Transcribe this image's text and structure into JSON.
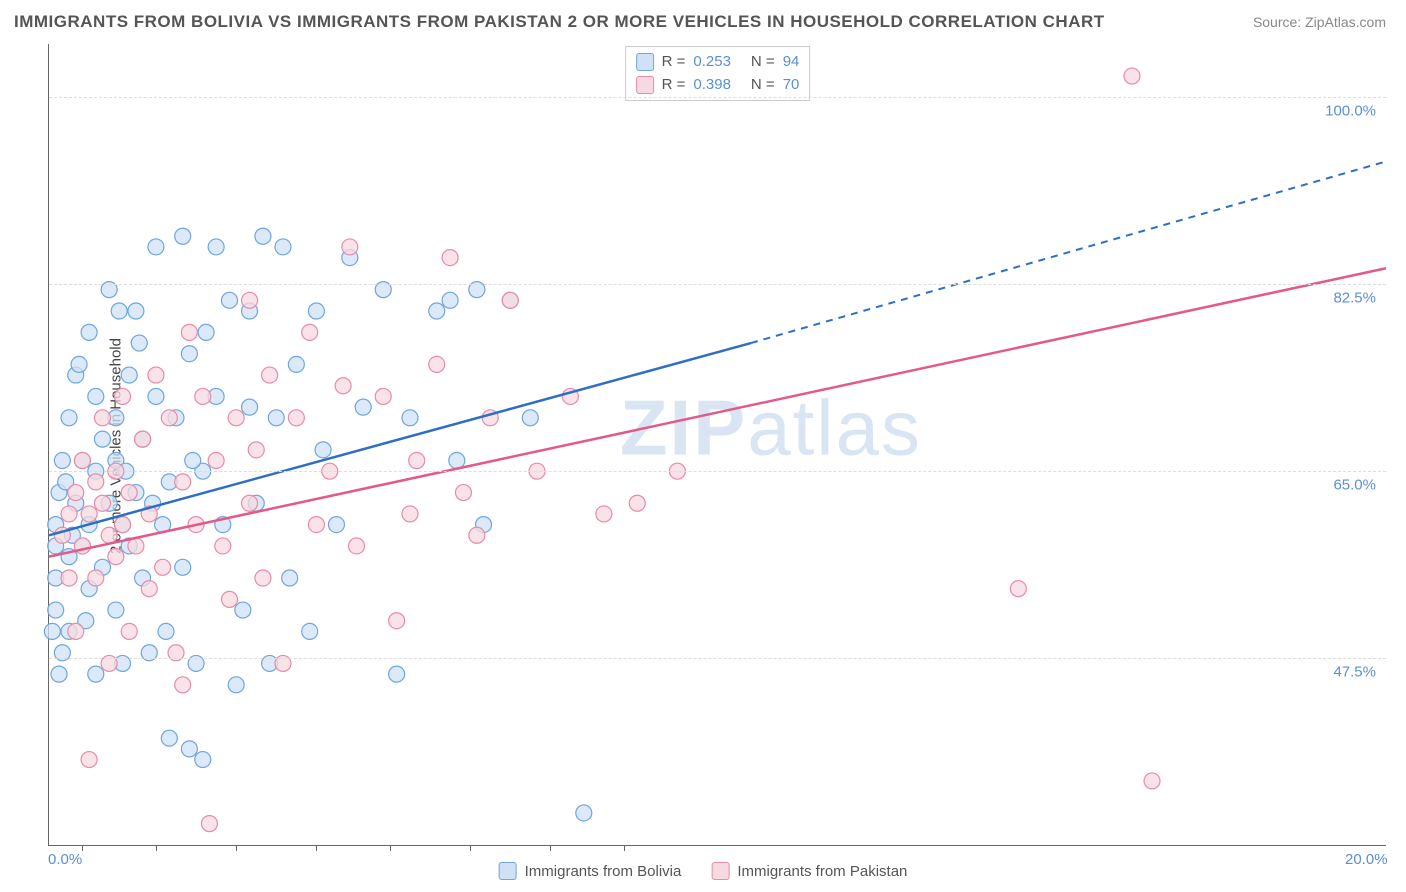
{
  "title": "IMMIGRANTS FROM BOLIVIA VS IMMIGRANTS FROM PAKISTAN 2 OR MORE VEHICLES IN HOUSEHOLD CORRELATION CHART",
  "source": "Source: ZipAtlas.com",
  "ylabel": "2 or more Vehicles in Household",
  "watermark_a": "ZIP",
  "watermark_b": "atlas",
  "chart": {
    "type": "scatter",
    "background_color": "#ffffff",
    "grid_color": "#dddddd",
    "xlim": [
      0,
      20
    ],
    "ylim": [
      30,
      105
    ],
    "xticks_minor": [
      0.5,
      1.6,
      2.8,
      4.0,
      5.1,
      6.3,
      7.5,
      8.6
    ],
    "xtick_labels": [
      {
        "value": 0.0,
        "label": "0.0%"
      },
      {
        "value": 20.0,
        "label": "20.0%"
      }
    ],
    "ytick_labels": [
      {
        "value": 47.5,
        "label": "47.5%"
      },
      {
        "value": 65.0,
        "label": "65.0%"
      },
      {
        "value": 82.5,
        "label": "82.5%"
      },
      {
        "value": 100.0,
        "label": "100.0%"
      }
    ],
    "series": [
      {
        "name": "Immigrants from Bolivia",
        "color_fill": "#cfe1f5",
        "color_stroke": "#6ea6df",
        "line_color": "#2e6fc4",
        "R": "0.253",
        "N": "94",
        "marker_radius": 8,
        "trend": {
          "x1": 0,
          "y1": 59,
          "x2_solid": 10.5,
          "y2_solid": 77,
          "x2": 20,
          "y2": 94
        },
        "points": [
          [
            0.1,
            60
          ],
          [
            0.1,
            58
          ],
          [
            0.1,
            55
          ],
          [
            0.1,
            52
          ],
          [
            0.15,
            63
          ],
          [
            0.2,
            48
          ],
          [
            0.2,
            66
          ],
          [
            0.3,
            70
          ],
          [
            0.3,
            57
          ],
          [
            0.3,
            50
          ],
          [
            0.4,
            62
          ],
          [
            0.4,
            74
          ],
          [
            0.5,
            66
          ],
          [
            0.5,
            58
          ],
          [
            0.6,
            54
          ],
          [
            0.6,
            60
          ],
          [
            0.6,
            78
          ],
          [
            0.7,
            72
          ],
          [
            0.7,
            65
          ],
          [
            0.8,
            56
          ],
          [
            0.8,
            68
          ],
          [
            0.9,
            82
          ],
          [
            0.9,
            62
          ],
          [
            1.0,
            70
          ],
          [
            1.0,
            52
          ],
          [
            1.0,
            66
          ],
          [
            1.1,
            47
          ],
          [
            1.1,
            60
          ],
          [
            1.2,
            74
          ],
          [
            1.2,
            58
          ],
          [
            1.3,
            80
          ],
          [
            1.3,
            63
          ],
          [
            1.4,
            55
          ],
          [
            1.4,
            68
          ],
          [
            1.5,
            48
          ],
          [
            1.6,
            86
          ],
          [
            1.6,
            72
          ],
          [
            1.7,
            60
          ],
          [
            1.8,
            64
          ],
          [
            1.8,
            40
          ],
          [
            1.9,
            70
          ],
          [
            2.0,
            87
          ],
          [
            2.0,
            56
          ],
          [
            2.1,
            76
          ],
          [
            2.2,
            47
          ],
          [
            2.3,
            65
          ],
          [
            2.3,
            38
          ],
          [
            2.5,
            86
          ],
          [
            2.5,
            72
          ],
          [
            2.6,
            60
          ],
          [
            2.7,
            81
          ],
          [
            2.8,
            45
          ],
          [
            3.0,
            71
          ],
          [
            3.0,
            80
          ],
          [
            3.1,
            62
          ],
          [
            3.2,
            87
          ],
          [
            3.3,
            47
          ],
          [
            3.4,
            70
          ],
          [
            3.6,
            55
          ],
          [
            3.7,
            75
          ],
          [
            4.0,
            80
          ],
          [
            4.1,
            67
          ],
          [
            4.3,
            60
          ],
          [
            4.5,
            85
          ],
          [
            4.7,
            71
          ],
          [
            5.0,
            82
          ],
          [
            5.2,
            46
          ],
          [
            5.4,
            70
          ],
          [
            5.8,
            80
          ],
          [
            6.0,
            81
          ],
          [
            6.1,
            66
          ],
          [
            6.4,
            82
          ],
          [
            6.5,
            60
          ],
          [
            6.9,
            81
          ],
          [
            7.2,
            70
          ],
          [
            8.0,
            33
          ],
          [
            0.05,
            50
          ],
          [
            0.25,
            64
          ],
          [
            0.35,
            59
          ],
          [
            0.45,
            75
          ],
          [
            0.55,
            51
          ],
          [
            1.15,
            65
          ],
          [
            1.35,
            77
          ],
          [
            1.55,
            62
          ],
          [
            1.75,
            50
          ],
          [
            2.15,
            66
          ],
          [
            2.35,
            78
          ],
          [
            2.9,
            52
          ],
          [
            3.5,
            86
          ],
          [
            3.9,
            50
          ],
          [
            1.05,
            80
          ],
          [
            0.7,
            46
          ],
          [
            2.1,
            39
          ],
          [
            0.15,
            46
          ]
        ]
      },
      {
        "name": "Immigrants from Pakistan",
        "color_fill": "#f7d9e1",
        "color_stroke": "#e88ba6",
        "line_color": "#e35a8a",
        "R": "0.398",
        "N": "70",
        "marker_radius": 8,
        "trend": {
          "x1": 0,
          "y1": 57,
          "x2_solid": 20,
          "y2_solid": 84,
          "x2": 20,
          "y2": 84
        },
        "points": [
          [
            0.2,
            59
          ],
          [
            0.3,
            61
          ],
          [
            0.3,
            55
          ],
          [
            0.4,
            63
          ],
          [
            0.5,
            58
          ],
          [
            0.5,
            66
          ],
          [
            0.6,
            38
          ],
          [
            0.6,
            61
          ],
          [
            0.7,
            55
          ],
          [
            0.8,
            70
          ],
          [
            0.8,
            62
          ],
          [
            0.9,
            59
          ],
          [
            1.0,
            65
          ],
          [
            1.0,
            57
          ],
          [
            1.1,
            72
          ],
          [
            1.2,
            50
          ],
          [
            1.2,
            63
          ],
          [
            1.3,
            58
          ],
          [
            1.4,
            68
          ],
          [
            1.5,
            61
          ],
          [
            1.6,
            74
          ],
          [
            1.7,
            56
          ],
          [
            1.8,
            70
          ],
          [
            1.9,
            48
          ],
          [
            2.0,
            64
          ],
          [
            2.1,
            78
          ],
          [
            2.2,
            60
          ],
          [
            2.3,
            72
          ],
          [
            2.4,
            32
          ],
          [
            2.5,
            66
          ],
          [
            2.6,
            58
          ],
          [
            2.8,
            70
          ],
          [
            3.0,
            81
          ],
          [
            3.0,
            62
          ],
          [
            3.2,
            55
          ],
          [
            3.3,
            74
          ],
          [
            3.5,
            47
          ],
          [
            3.7,
            70
          ],
          [
            3.9,
            78
          ],
          [
            4.0,
            60
          ],
          [
            4.2,
            65
          ],
          [
            4.5,
            86
          ],
          [
            4.6,
            58
          ],
          [
            5.0,
            72
          ],
          [
            5.2,
            51
          ],
          [
            5.5,
            66
          ],
          [
            5.8,
            75
          ],
          [
            6.0,
            85
          ],
          [
            6.2,
            63
          ],
          [
            6.6,
            70
          ],
          [
            6.9,
            81
          ],
          [
            7.3,
            65
          ],
          [
            7.8,
            72
          ],
          [
            8.3,
            61
          ],
          [
            8.8,
            62
          ],
          [
            9.4,
            65
          ],
          [
            14.5,
            54
          ],
          [
            16.2,
            102
          ],
          [
            16.5,
            36
          ],
          [
            0.4,
            50
          ],
          [
            0.9,
            47
          ],
          [
            1.5,
            54
          ],
          [
            2.0,
            45
          ],
          [
            2.7,
            53
          ],
          [
            3.1,
            67
          ],
          [
            4.4,
            73
          ],
          [
            5.4,
            61
          ],
          [
            6.4,
            59
          ],
          [
            1.1,
            60
          ],
          [
            0.7,
            64
          ]
        ]
      }
    ],
    "legend_bottom": [
      {
        "label": "Immigrants from Bolivia",
        "fill": "#cfe1f5",
        "stroke": "#6ea6df"
      },
      {
        "label": "Immigrants from Pakistan",
        "fill": "#f7d9e1",
        "stroke": "#e88ba6"
      }
    ]
  }
}
